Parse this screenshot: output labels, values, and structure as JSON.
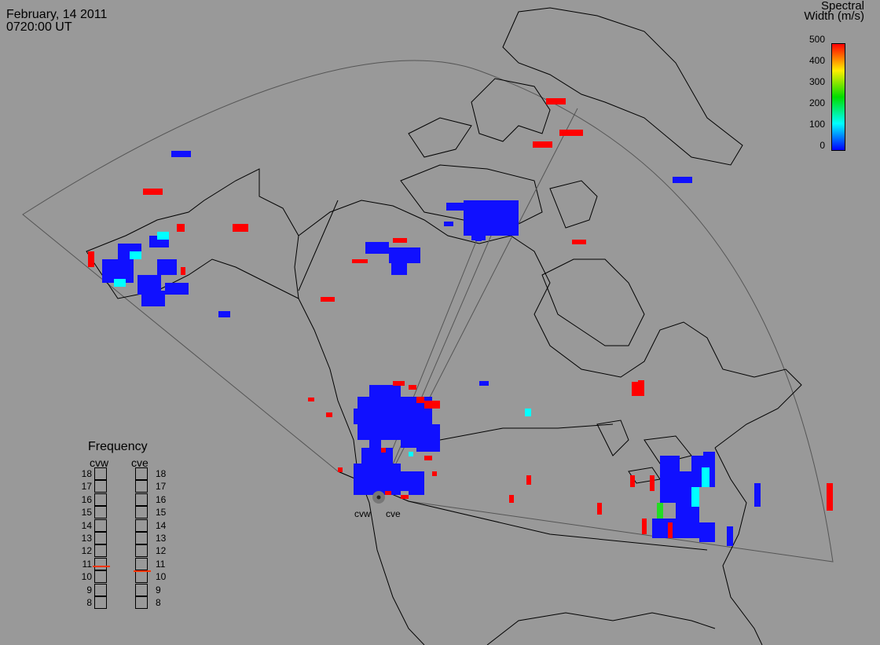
{
  "header": {
    "date": "February, 14 2011",
    "time": "0720:00 UT"
  },
  "colorbar": {
    "title_line1": "Spectral",
    "title_line2": "Width (m/s)",
    "ticks": [
      "500",
      "400",
      "300",
      "200",
      "100",
      "0"
    ],
    "colors": [
      "#ff0000",
      "#ffee00",
      "#00dd00",
      "#00ffff",
      "#0000ff"
    ]
  },
  "frequency": {
    "title": "Frequency",
    "radars": [
      "cvw",
      "cve"
    ],
    "scale": [
      "18",
      "17",
      "16",
      "15",
      "14",
      "13",
      "12",
      "11",
      "10",
      "9",
      "8"
    ],
    "cvw_mhz": 10.9,
    "cve_mhz": 10.5,
    "marker_color": "#ff3300"
  },
  "sites": {
    "west": "cvw",
    "east": "cve"
  },
  "colors": {
    "background": "#999999",
    "scatter_blue": "#1010ff",
    "scatter_red": "#ff0000",
    "scatter_cyan": "#00ffff",
    "scatter_green": "#22dd22"
  }
}
